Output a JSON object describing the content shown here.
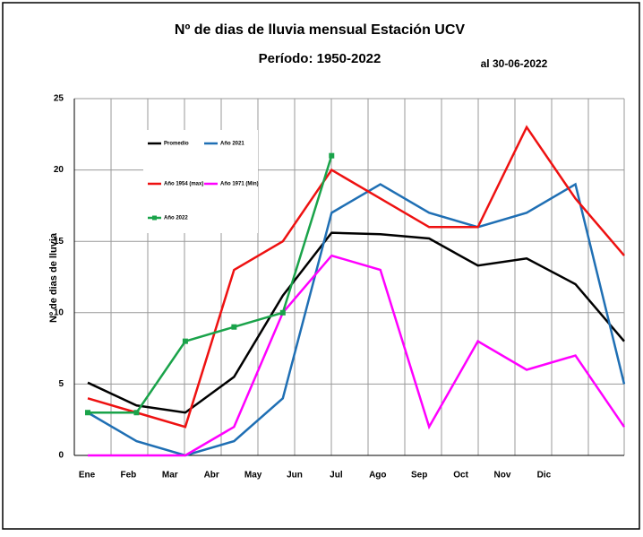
{
  "chart_data": {
    "type": "line",
    "title": "Nº de dias de lluvia mensual Estación UCV",
    "subtitle": "Período:  1950-2022",
    "annotation": "al 30-06-2022",
    "y_label": "Nº de dias de lluvia",
    "categories": [
      "Ene",
      "Feb",
      "Mar",
      "Abr",
      "May",
      "Jun",
      "Jul",
      "Ago",
      "Sep",
      "Oct",
      "Nov",
      "Dic"
    ],
    "series": [
      {
        "name": "Promedio",
        "color": "#000000",
        "values": [
          5.1,
          3.5,
          3,
          5.5,
          11.2,
          15.6,
          15.5,
          15.2,
          13.3,
          13.8,
          12,
          8
        ]
      },
      {
        "name": "Año 2021",
        "color": "#1f6fb4",
        "values": [
          3,
          1,
          0,
          1,
          4,
          17,
          19,
          17,
          16,
          17,
          19,
          5
        ]
      },
      {
        "name": "Año 1954 (max)",
        "color": "#ee1111",
        "values": [
          4,
          3,
          2,
          13,
          15,
          20,
          18,
          16,
          16,
          23,
          18,
          14
        ]
      },
      {
        "name": "Año 1971 (Min)",
        "color": "#ff00ff",
        "values": [
          0,
          0,
          0,
          2,
          10,
          14,
          13,
          2,
          8,
          6,
          7,
          2
        ]
      },
      {
        "name": "Año 2022",
        "color": "#1aa34a",
        "values": [
          3,
          3,
          8,
          9,
          10,
          21,
          null,
          null,
          null,
          null,
          null,
          null
        ]
      }
    ],
    "ylim": [
      0,
      25
    ],
    "yticks": [
      0,
      5,
      10,
      15,
      20,
      25
    ],
    "grid": true
  }
}
